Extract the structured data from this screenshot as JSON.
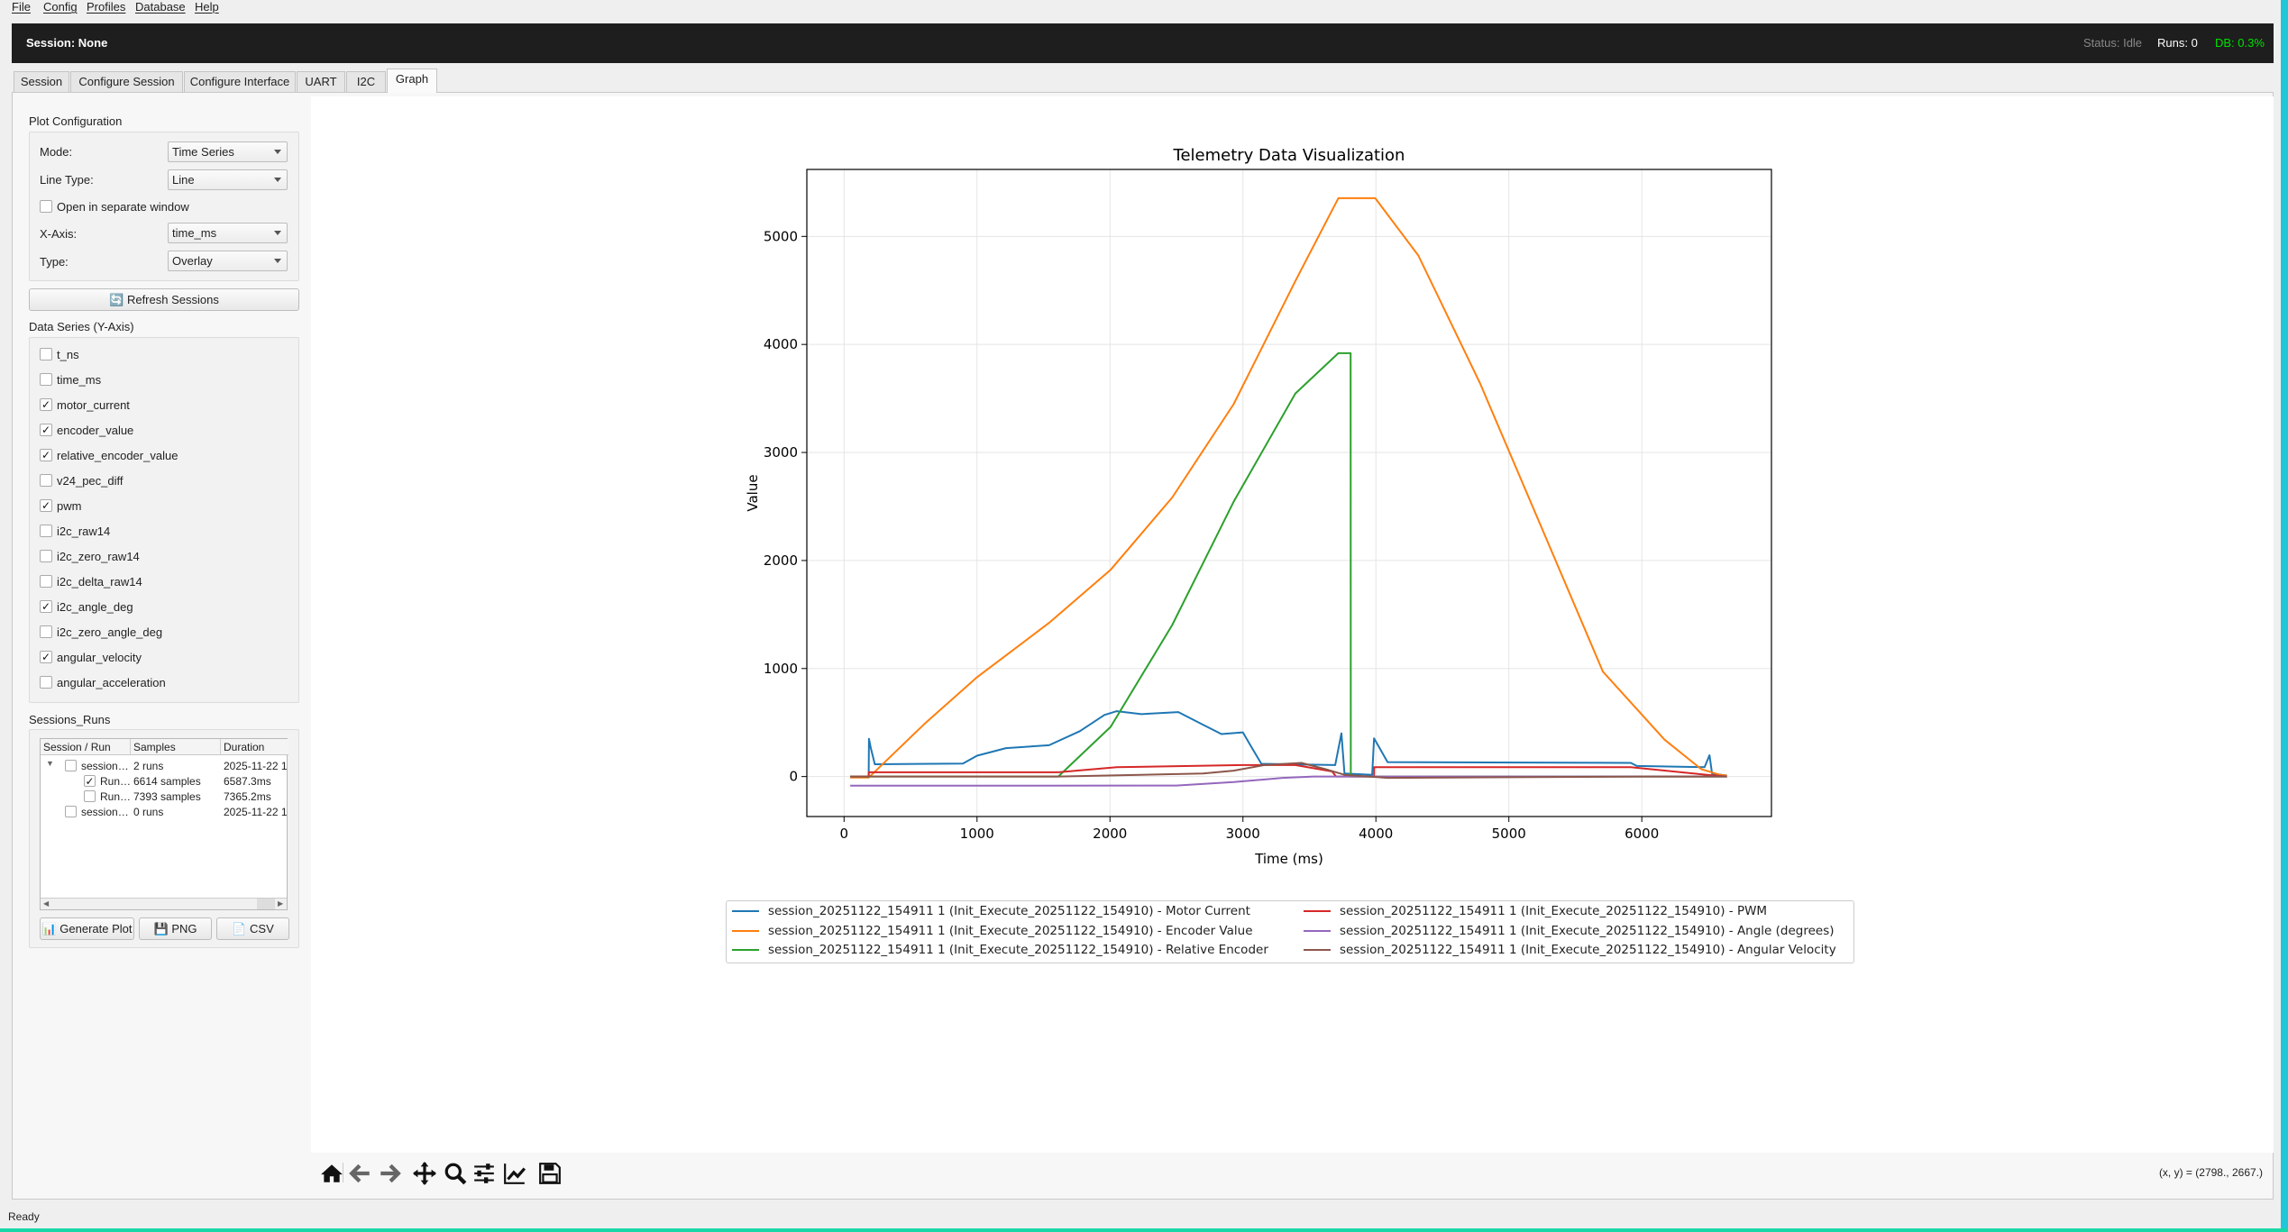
{
  "menu": [
    "File",
    "Config",
    "Profiles",
    "Database",
    "Help"
  ],
  "header": {
    "session": "Session: None",
    "status": "Status: Idle",
    "runs": "Runs: 0",
    "db": "DB: 0.3%",
    "db_color": "#00e000"
  },
  "tabs": [
    "Session",
    "Configure Session",
    "Configure Interface",
    "UART",
    "I2C",
    "Graph"
  ],
  "active_tab": "Graph",
  "plot_config": {
    "title": "Plot Configuration",
    "mode_label": "Mode:",
    "mode": "Time Series",
    "line_type_label": "Line Type:",
    "line_type": "Line",
    "separate_window": "Open in separate window",
    "separate_window_checked": false,
    "xaxis_label": "X-Axis:",
    "xaxis": "time_ms",
    "type_label": "Type:",
    "type": "Overlay"
  },
  "refresh_button": "Refresh Sessions",
  "data_series": {
    "title": "Data Series (Y-Axis)",
    "items": [
      {
        "label": "t_ns",
        "checked": false
      },
      {
        "label": "time_ms",
        "checked": false
      },
      {
        "label": "motor_current",
        "checked": true
      },
      {
        "label": "encoder_value",
        "checked": true
      },
      {
        "label": "relative_encoder_value",
        "checked": true
      },
      {
        "label": "v24_pec_diff",
        "checked": false
      },
      {
        "label": "pwm",
        "checked": true
      },
      {
        "label": "i2c_raw14",
        "checked": false
      },
      {
        "label": "i2c_zero_raw14",
        "checked": false
      },
      {
        "label": "i2c_delta_raw14",
        "checked": false
      },
      {
        "label": "i2c_angle_deg",
        "checked": true
      },
      {
        "label": "i2c_zero_angle_deg",
        "checked": false
      },
      {
        "label": "angular_velocity",
        "checked": true
      },
      {
        "label": "angular_acceleration",
        "checked": false
      }
    ]
  },
  "sessions": {
    "title": "Sessions_Runs",
    "columns": [
      "Session / Run",
      "Samples",
      "Duration"
    ],
    "rows": [
      {
        "name": "session…",
        "samples": "2 runs",
        "duration": "2025-11-22 1·",
        "level": 0,
        "checked": false,
        "expanded": true
      },
      {
        "name": "Run…",
        "samples": "6614 samples",
        "duration": "6587.3ms",
        "level": 1,
        "checked": true
      },
      {
        "name": "Run…",
        "samples": "7393 samples",
        "duration": "7365.2ms",
        "level": 1,
        "checked": false
      },
      {
        "name": "session…",
        "samples": "0 runs",
        "duration": "2025-11-22 1·",
        "level": 0,
        "checked": false
      }
    ]
  },
  "buttons": {
    "generate": "Generate Plot",
    "png": "PNG",
    "csv": "CSV"
  },
  "toolbar": {
    "icons": [
      "home-icon",
      "back-icon",
      "forward-icon",
      "pan-icon",
      "zoom-icon",
      "configure-subplots-icon",
      "edit-axes-icon",
      "save-icon"
    ],
    "coords": "(x, y) = (2798., 2667.)"
  },
  "status_bar": "Ready",
  "chart_data": {
    "type": "line",
    "title": "Telemetry Data Visualization",
    "xlabel": "Time (ms)",
    "ylabel": "Value",
    "xlim": [
      -280,
      6975
    ],
    "ylim": [
      -370,
      5620
    ],
    "xticks": [
      0,
      1000,
      2000,
      3000,
      4000,
      5000,
      6000
    ],
    "yticks": [
      0,
      1000,
      2000,
      3000,
      4000,
      5000
    ],
    "grid": true,
    "legend_position": "below",
    "legend_columns": 2,
    "series": [
      {
        "name": "session_20251122_154911 1 (Init_Execute_20251122_154910) - Motor Current",
        "color": "#1f77b4",
        "x": [
          46,
          185,
          187,
          200,
          231,
          894,
          1000,
          1218,
          1542,
          1773,
          1958,
          2051,
          2236,
          2514,
          2699,
          2838,
          3000,
          3069,
          3139,
          3694,
          3741,
          3764,
          3972,
          3986,
          4028,
          4088,
          5917,
          5963,
          6472,
          6509,
          6528,
          6640
        ],
        "y": [
          0,
          0,
          350,
          271,
          114,
          120,
          193,
          263,
          290,
          420,
          570,
          605,
          578,
          597,
          480,
          393,
          409,
          263,
          118,
          106,
          400,
          28,
          16,
          354,
          263,
          134,
          126,
          98,
          86,
          197,
          28,
          10
        ]
      },
      {
        "name": "session_20251122_154911 1 (Init_Execute_20251122_154910) - Encoder Value",
        "color": "#ff7f0e",
        "x": [
          46,
          185,
          616,
          1000,
          1542,
          2005,
          2468,
          2930,
          3394,
          3718,
          3995,
          4319,
          4782,
          5245,
          5708,
          6171,
          6449,
          6588,
          6640
        ],
        "y": [
          -10,
          -10,
          500,
          920,
          1423,
          1914,
          2583,
          3447,
          4587,
          5354,
          5354,
          4823,
          3644,
          2307,
          971,
          342,
          67,
          16,
          10
        ]
      },
      {
        "name": "session_20251122_154911 1 (Init_Execute_20251122_154910) - Relative Encoder",
        "color": "#2ca02c",
        "x": [
          46,
          1611,
          2005,
          2468,
          2930,
          3394,
          3718,
          3810,
          3811,
          6640
        ],
        "y": [
          0,
          0,
          460,
          1403,
          2543,
          3546,
          3919,
          3919,
          0,
          0
        ]
      },
      {
        "name": "session_20251122_154911 1 (Init_Execute_20251122_154910) - PWM",
        "color": "#d62728",
        "x": [
          46,
          185,
          186,
          1611,
          2051,
          3000,
          3394,
          3671,
          3700,
          3986,
          3987,
          5917,
          6500,
          6640
        ],
        "y": [
          0,
          0,
          40,
          40,
          86,
          106,
          106,
          47,
          0,
          0,
          86,
          86,
          15,
          0
        ]
      },
      {
        "name": "session_20251122_154911 1 (Init_Execute_20251122_154910) - Angle (degrees)",
        "color": "#9467bd",
        "x": [
          46,
          2500,
          2930,
          3300,
          3532,
          6640
        ],
        "y": [
          -85,
          -83,
          -51,
          -12,
          0,
          0
        ]
      },
      {
        "name": "session_20251122_154911 1 (Init_Execute_20251122_154910) - Angular Velocity",
        "color": "#8c564b",
        "x": [
          46,
          1611,
          2699,
          2930,
          3162,
          3440,
          3625,
          3764,
          4088,
          6000,
          6640
        ],
        "y": [
          0,
          0,
          28,
          55,
          106,
          126,
          67,
          16,
          -12,
          0,
          0
        ]
      }
    ]
  }
}
